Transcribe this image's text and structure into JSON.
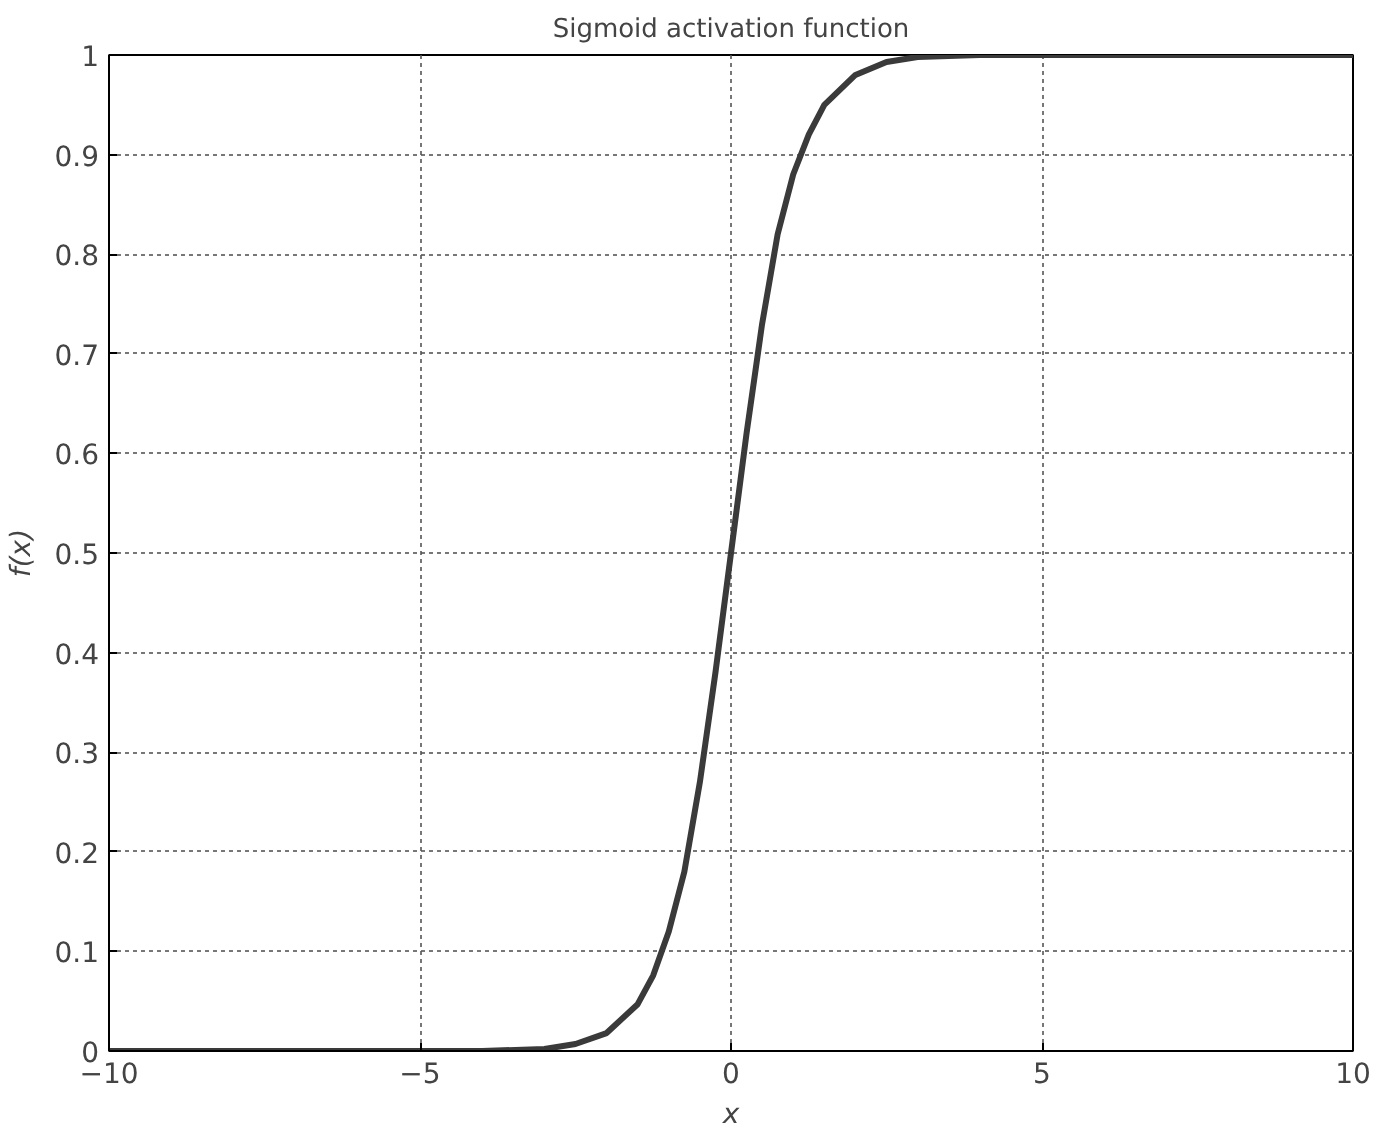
{
  "chart_data": {
    "type": "line",
    "title": "Sigmoid activation function",
    "xlabel": "x",
    "ylabel": "f(x)",
    "xlim": [
      -10,
      10
    ],
    "ylim": [
      0,
      1
    ],
    "xticks": [
      {
        "value": -10,
        "label": "−10"
      },
      {
        "value": -5,
        "label": "−5"
      },
      0,
      5,
      10
    ],
    "yticks": [
      0,
      0.1,
      0.2,
      0.3,
      0.4,
      0.5,
      0.6,
      0.7,
      0.8,
      0.9,
      1
    ],
    "grid": true,
    "line_style": "solid",
    "marker": "none",
    "series": [
      {
        "color": "#3a3a3a",
        "x": [
          -10,
          -6,
          -4,
          -3,
          -2.5,
          -2,
          -1.5,
          -1.25,
          -1,
          -0.75,
          -0.5,
          -0.25,
          0,
          0.25,
          0.5,
          0.75,
          1,
          1.25,
          1.5,
          2,
          2.5,
          3,
          4,
          6,
          10
        ],
        "values": [
          0,
          0,
          0,
          0.002,
          0.007,
          0.018,
          0.047,
          0.076,
          0.12,
          0.18,
          0.27,
          0.38,
          0.5,
          0.62,
          0.73,
          0.82,
          0.88,
          0.92,
          0.95,
          0.98,
          0.993,
          0.998,
          1,
          1,
          1
        ]
      }
    ]
  }
}
